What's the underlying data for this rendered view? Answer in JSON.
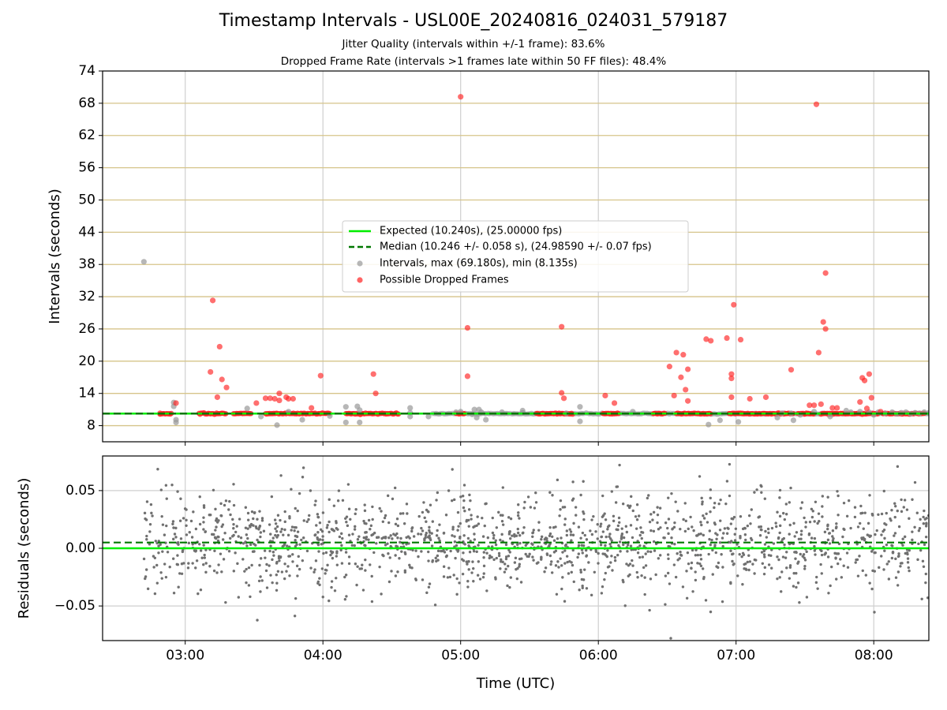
{
  "title": "Timestamp Intervals - USL00E_20240816_024031_579187",
  "subtitle_1": "Jitter Quality (intervals within +/-1 frame): 83.6%",
  "subtitle_2": "Dropped Frame Rate (intervals >1 frames late within 50 FF files): 48.4%",
  "colors": {
    "expected": "#00ee00",
    "median": "#007700",
    "intervals": "#999999",
    "dropped": "#ff2222",
    "residuals": "#707070",
    "hgrid_top": "#d6c48a",
    "grid": "#cfcfcf"
  },
  "chart_data": [
    {
      "type": "scatter",
      "ylabel": "Intervals (seconds)",
      "xlim": [
        "02:24",
        "08:24"
      ],
      "ylim": [
        5,
        74
      ],
      "yticks": [
        "8",
        "14",
        "20",
        "26",
        "32",
        "38",
        "44",
        "50",
        "56",
        "62",
        "68",
        "74"
      ],
      "grid": true,
      "legend_position": "center",
      "legend": [
        "Expected (10.240s), (25.00000 fps)",
        "Median (10.246 +/- 0.058 s), (24.98590 +/- 0.07 fps)",
        "Intervals, max (69.180s), min (8.135s)",
        "Possible Dropped Frames"
      ],
      "expected_y": 10.24,
      "median_y": 10.246,
      "series": [
        {
          "name": "Intervals, max (69.180s), min (8.135s)",
          "points": [
            [
              "02:42",
              38.5
            ],
            [
              "02:55",
              11.6
            ],
            [
              "02:55",
              12.3
            ],
            [
              "02:56",
              9.1
            ],
            [
              "02:56",
              8.6
            ],
            [
              "03:27",
              11.2
            ],
            [
              "03:33",
              9.7
            ],
            [
              "03:40",
              8.1
            ],
            [
              "03:45",
              10.6
            ],
            [
              "03:51",
              9.1
            ],
            [
              "04:03",
              9.8
            ],
            [
              "04:10",
              8.6
            ],
            [
              "04:10",
              11.5
            ],
            [
              "04:15",
              11.6
            ],
            [
              "04:16",
              10.9
            ],
            [
              "04:16",
              8.6
            ],
            [
              "04:38",
              10.4
            ],
            [
              "04:38",
              9.7
            ],
            [
              "04:38",
              11.3
            ],
            [
              "04:46",
              9.7
            ],
            [
              "04:58",
              10.5
            ],
            [
              "05:00",
              10.6
            ],
            [
              "05:05",
              10.1
            ],
            [
              "05:06",
              11.0
            ],
            [
              "05:07",
              9.5
            ],
            [
              "05:08",
              11.0
            ],
            [
              "05:09",
              10.5
            ],
            [
              "05:11",
              9.1
            ],
            [
              "05:18",
              10.5
            ],
            [
              "05:27",
              10.8
            ],
            [
              "05:27",
              10.4
            ],
            [
              "05:46",
              10.3
            ],
            [
              "05:52",
              11.5
            ],
            [
              "05:52",
              8.8
            ],
            [
              "06:15",
              10.6
            ],
            [
              "06:48",
              8.2
            ],
            [
              "06:53",
              9.0
            ],
            [
              "07:01",
              8.7
            ],
            [
              "07:18",
              9.5
            ],
            [
              "07:20",
              10.3
            ],
            [
              "07:24",
              10.3
            ],
            [
              "07:25",
              9.0
            ],
            [
              "07:28",
              10.0
            ],
            [
              "07:34",
              10.6
            ],
            [
              "07:41",
              9.7
            ],
            [
              "07:48",
              10.8
            ],
            [
              "07:50",
              10.5
            ],
            [
              "07:54",
              10.6
            ],
            [
              "07:58",
              10.5
            ],
            [
              "08:00",
              10.0
            ],
            [
              "08:02",
              10.5
            ],
            [
              "08:05",
              10.3
            ],
            [
              "08:08",
              10.5
            ],
            [
              "08:10",
              10.2
            ],
            [
              "08:12",
              10.4
            ],
            [
              "08:14",
              10.5
            ],
            [
              "08:16",
              10.2
            ],
            [
              "08:18",
              10.4
            ],
            [
              "08:20",
              10.3
            ],
            [
              "08:22",
              10.5
            ],
            [
              "08:24",
              10.4
            ]
          ]
        },
        {
          "name": "Possible Dropped Frames",
          "points": [
            [
              "02:49",
              10.3
            ],
            [
              "02:56",
              12.2
            ],
            [
              "03:11",
              18.0
            ],
            [
              "03:12",
              31.3
            ],
            [
              "03:14",
              13.3
            ],
            [
              "03:15",
              22.7
            ],
            [
              "03:16",
              16.6
            ],
            [
              "03:18",
              15.1
            ],
            [
              "03:31",
              12.2
            ],
            [
              "03:35",
              13.1
            ],
            [
              "03:37",
              13.1
            ],
            [
              "03:39",
              13.0
            ],
            [
              "03:41",
              12.7
            ],
            [
              "03:41",
              14.0
            ],
            [
              "03:44",
              13.3
            ],
            [
              "03:45",
              13.0
            ],
            [
              "03:47",
              13.0
            ],
            [
              "03:55",
              11.3
            ],
            [
              "03:59",
              17.3
            ],
            [
              "04:22",
              17.6
            ],
            [
              "04:23",
              14.0
            ],
            [
              "05:00",
              69.2
            ],
            [
              "05:03",
              17.2
            ],
            [
              "05:03",
              26.2
            ],
            [
              "05:44",
              26.4
            ],
            [
              "05:44",
              14.1
            ],
            [
              "05:45",
              13.1
            ],
            [
              "06:03",
              13.6
            ],
            [
              "06:07",
              12.2
            ],
            [
              "06:31",
              19.0
            ],
            [
              "06:33",
              13.6
            ],
            [
              "06:34",
              21.6
            ],
            [
              "06:36",
              17.0
            ],
            [
              "06:37",
              21.2
            ],
            [
              "06:38",
              14.7
            ],
            [
              "06:39",
              12.6
            ],
            [
              "06:39",
              18.5
            ],
            [
              "06:47",
              24.1
            ],
            [
              "06:49",
              23.8
            ],
            [
              "06:56",
              24.3
            ],
            [
              "06:58",
              17.6
            ],
            [
              "06:58",
              16.8
            ],
            [
              "06:58",
              13.3
            ],
            [
              "06:59",
              30.5
            ],
            [
              "07:02",
              24.0
            ],
            [
              "07:06",
              13.0
            ],
            [
              "07:13",
              13.3
            ],
            [
              "07:24",
              18.4
            ],
            [
              "07:32",
              11.8
            ],
            [
              "07:34",
              11.8
            ],
            [
              "07:35",
              67.8
            ],
            [
              "07:36",
              21.6
            ],
            [
              "07:37",
              12.0
            ],
            [
              "07:38",
              27.3
            ],
            [
              "07:39",
              26.0
            ],
            [
              "07:39",
              36.4
            ],
            [
              "07:42",
              11.3
            ],
            [
              "07:44",
              11.3
            ],
            [
              "07:54",
              12.4
            ],
            [
              "07:55",
              16.9
            ],
            [
              "07:56",
              16.4
            ],
            [
              "07:57",
              11.2
            ],
            [
              "07:58",
              17.6
            ],
            [
              "07:59",
              13.2
            ],
            [
              "08:03",
              10.6
            ]
          ]
        }
      ]
    },
    {
      "type": "scatter",
      "xlabel": "Time (UTC)",
      "ylabel": "Residuals (seconds)",
      "xlim": [
        "02:24",
        "08:24"
      ],
      "ylim": [
        -0.08,
        0.08
      ],
      "xticks": [
        "03:00",
        "04:00",
        "05:00",
        "06:00",
        "07:00",
        "08:00"
      ],
      "yticks": [
        "0.05",
        "0.00",
        "−0.05"
      ],
      "grid": true,
      "expected_y": 0,
      "median_y": 0.005,
      "series": [
        {
          "name": "Residuals",
          "time_range": [
            "02:42",
            "08:24"
          ],
          "y_range": [
            -0.078,
            0.079
          ]
        }
      ]
    }
  ]
}
